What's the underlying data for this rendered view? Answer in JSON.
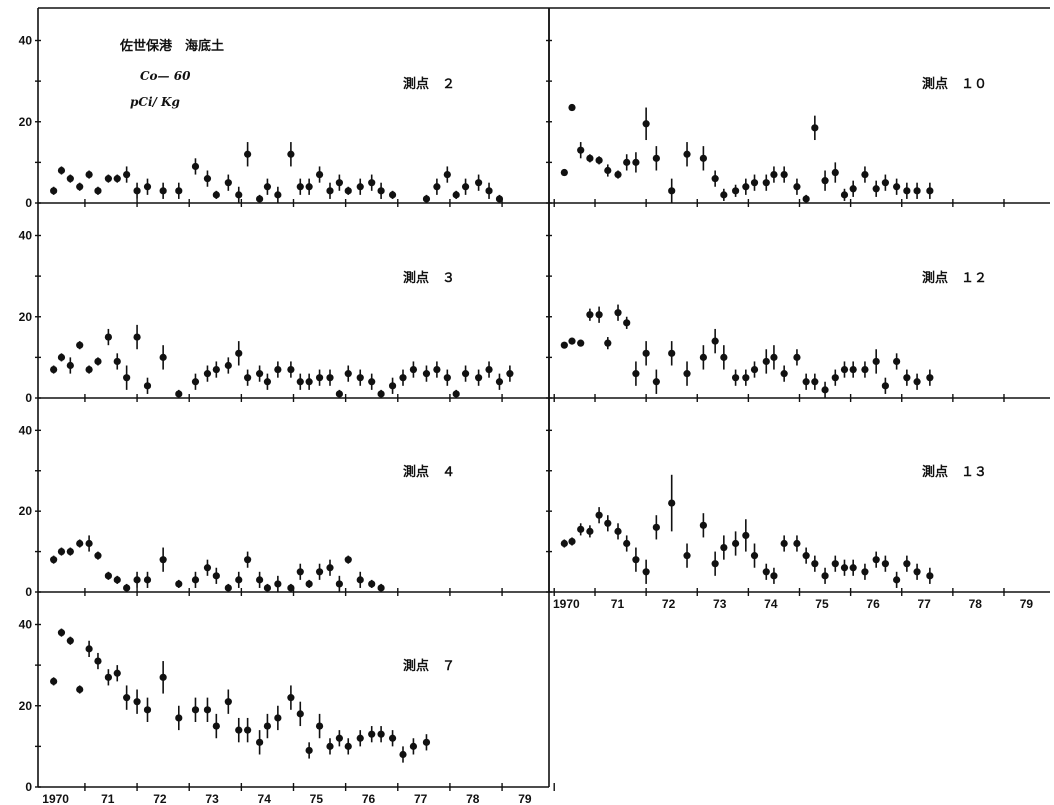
{
  "header": {
    "title": "佐世保港　海底土",
    "nuclide": "Co— 60",
    "unit": "pCi/ Kg"
  },
  "colors": {
    "ink": "#111111",
    "background": "#ffffff"
  },
  "chart_data": [
    {
      "type": "scatter",
      "station_label": "測点　２",
      "ylim": [
        0,
        48
      ],
      "yticks": [
        0,
        20,
        40
      ],
      "xlim": [
        1969.7,
        1979.5
      ],
      "xtick_labels": [
        "1970",
        "71",
        "72",
        "73",
        "74",
        "75",
        "76",
        "77",
        "78",
        "79"
      ],
      "x": [
        1970.0,
        1970.15,
        1970.32,
        1970.5,
        1970.68,
        1970.85,
        1971.05,
        1971.22,
        1971.4,
        1971.6,
        1971.8,
        1972.1,
        1972.4,
        1972.72,
        1972.95,
        1973.12,
        1973.35,
        1973.55,
        1973.72,
        1973.95,
        1974.1,
        1974.3,
        1974.55,
        1974.73,
        1974.9,
        1975.1,
        1975.3,
        1975.48,
        1975.65,
        1975.88,
        1976.1,
        1976.28,
        1976.5,
        1976.7,
        1976.9,
        1977.15,
        1977.35,
        1977.55,
        1977.72,
        1977.9,
        1978.15,
        1978.35,
        1978.55
      ],
      "y": [
        3,
        8,
        6,
        4,
        7,
        3,
        6,
        6,
        7,
        3,
        4,
        3,
        3,
        9,
        6,
        2,
        5,
        2,
        12,
        1,
        4,
        2,
        12,
        4,
        4,
        7,
        3,
        5,
        3,
        4,
        5,
        3,
        2,
        0,
        0,
        1,
        4,
        7,
        2,
        4,
        5,
        3,
        1
      ],
      "err": [
        1,
        1,
        1,
        1,
        1,
        1,
        1,
        1,
        2,
        2,
        2,
        2,
        2,
        2,
        2,
        1,
        2,
        2,
        3,
        1,
        2,
        2,
        3,
        2,
        2,
        2,
        2,
        2,
        1,
        2,
        2,
        2,
        1,
        0,
        0,
        1,
        2,
        2,
        1,
        2,
        2,
        2,
        1
      ]
    },
    {
      "type": "scatter",
      "station_label": "測点　３",
      "ylim": [
        0,
        48
      ],
      "yticks": [
        0,
        20,
        40
      ],
      "xlim": [
        1969.7,
        1979.5
      ],
      "xtick_labels": [
        "1970",
        "71",
        "72",
        "73",
        "74",
        "75",
        "76",
        "77",
        "78",
        "79"
      ],
      "x": [
        1970.0,
        1970.15,
        1970.32,
        1970.5,
        1970.68,
        1970.85,
        1971.05,
        1971.22,
        1971.4,
        1971.6,
        1971.8,
        1972.1,
        1972.4,
        1972.72,
        1972.95,
        1973.12,
        1973.35,
        1973.55,
        1973.72,
        1973.95,
        1974.1,
        1974.3,
        1974.55,
        1974.73,
        1974.9,
        1975.1,
        1975.3,
        1975.48,
        1975.65,
        1975.88,
        1976.1,
        1976.28,
        1976.5,
        1976.7,
        1976.9,
        1977.15,
        1977.35,
        1977.55,
        1977.72,
        1977.9,
        1978.15,
        1978.35,
        1978.55,
        1978.75
      ],
      "y": [
        7,
        10,
        8,
        13,
        7,
        9,
        15,
        9,
        5,
        15,
        3,
        10,
        1,
        4,
        6,
        7,
        8,
        11,
        5,
        6,
        4,
        7,
        7,
        4,
        4,
        5,
        5,
        1,
        6,
        5,
        4,
        1,
        3,
        5,
        7,
        6,
        7,
        5,
        1,
        6,
        5,
        7,
        4,
        6
      ],
      "err": [
        1,
        1,
        2,
        1,
        1,
        1,
        2,
        2,
        3,
        3,
        2,
        3,
        1,
        2,
        2,
        2,
        2,
        3,
        2,
        2,
        2,
        2,
        2,
        2,
        2,
        2,
        2,
        1,
        2,
        2,
        2,
        1,
        2,
        2,
        2,
        2,
        2,
        2,
        1,
        2,
        2,
        2,
        2,
        2
      ]
    },
    {
      "type": "scatter",
      "station_label": "測点　４",
      "ylim": [
        0,
        48
      ],
      "yticks": [
        0,
        20,
        40
      ],
      "xlim": [
        1969.7,
        1979.5
      ],
      "xtick_labels": [
        "1970",
        "71",
        "72",
        "73",
        "74",
        "75",
        "76",
        "77",
        "78",
        "79"
      ],
      "x": [
        1970.0,
        1970.15,
        1970.32,
        1970.5,
        1970.68,
        1970.85,
        1971.05,
        1971.22,
        1971.4,
        1971.6,
        1971.8,
        1972.1,
        1972.4,
        1972.72,
        1972.95,
        1973.12,
        1973.35,
        1973.55,
        1973.72,
        1973.95,
        1974.1,
        1974.3,
        1974.55,
        1974.73,
        1974.9,
        1975.1,
        1975.3,
        1975.48,
        1975.65,
        1975.88,
        1976.1,
        1976.28,
        1976.5,
        1976.7,
        1976.9,
        1977.15,
        1977.35,
        1977.55,
        1977.72,
        1977.9,
        1978.15,
        1978.35
      ],
      "y": [
        8,
        10,
        10,
        12,
        12,
        9,
        4,
        3,
        1,
        3,
        3,
        8,
        2,
        3,
        6,
        4,
        1,
        3,
        8,
        3,
        1,
        2,
        1,
        5,
        2,
        5,
        6,
        2,
        8,
        3,
        2,
        1,
        0,
        0,
        0,
        0,
        0,
        0,
        0,
        0,
        0,
        0
      ],
      "err": [
        1,
        1,
        1,
        1,
        2,
        1,
        1,
        1,
        1,
        2,
        2,
        3,
        1,
        2,
        2,
        2,
        1,
        2,
        2,
        2,
        1,
        2,
        1,
        2,
        1,
        2,
        2,
        2,
        1,
        2,
        1,
        1,
        0,
        0,
        0,
        0,
        0,
        0,
        0,
        0,
        0,
        0
      ]
    },
    {
      "type": "scatter",
      "station_label": "測点　７",
      "ylim": [
        0,
        48
      ],
      "yticks": [
        0,
        20,
        40
      ],
      "xlim": [
        1969.7,
        1979.5
      ],
      "xtick_labels": [
        "1970",
        "71",
        "72",
        "73",
        "74",
        "75",
        "76",
        "77",
        "78",
        "79"
      ],
      "x": [
        1970.0,
        1970.15,
        1970.32,
        1970.5,
        1970.68,
        1970.85,
        1971.05,
        1971.22,
        1971.4,
        1971.6,
        1971.8,
        1972.1,
        1972.4,
        1972.72,
        1972.95,
        1973.12,
        1973.35,
        1973.55,
        1973.72,
        1973.95,
        1974.1,
        1974.3,
        1974.55,
        1974.73,
        1974.9,
        1975.1,
        1975.3,
        1975.48,
        1975.65,
        1975.88,
        1976.1,
        1976.28,
        1976.5,
        1976.7,
        1976.9,
        1977.15,
        1977.35,
        1977.55,
        1977.72,
        1977.9,
        1978.15,
        1978.35,
        1978.55
      ],
      "y": [
        26,
        38,
        36,
        24,
        34,
        31,
        27,
        28,
        22,
        21,
        19,
        27,
        17,
        19,
        19,
        15,
        21,
        14,
        14,
        11,
        15,
        17,
        22,
        18,
        9,
        15,
        10,
        12,
        10,
        12,
        13,
        13,
        12,
        8,
        10,
        11,
        0,
        0,
        0,
        0,
        0,
        0,
        0
      ],
      "err": [
        1,
        1,
        1,
        1,
        2,
        2,
        2,
        2,
        3,
        3,
        3,
        4,
        3,
        3,
        3,
        3,
        3,
        3,
        3,
        3,
        3,
        3,
        3,
        3,
        2,
        3,
        2,
        2,
        2,
        2,
        2,
        2,
        2,
        2,
        2,
        2,
        0,
        0,
        0,
        0,
        0,
        0,
        0
      ]
    },
    {
      "type": "scatter",
      "station_label": "測点　１０",
      "ylim": [
        0,
        48
      ],
      "yticks": [
        0,
        20,
        40
      ],
      "xlim": [
        1969.7,
        1979.5
      ],
      "xtick_labels": [
        "1970",
        "71",
        "72",
        "73",
        "74",
        "75",
        "76",
        "77",
        "78",
        "79"
      ],
      "x": [
        1970.0,
        1970.15,
        1970.32,
        1970.5,
        1970.68,
        1970.85,
        1971.05,
        1971.22,
        1971.4,
        1971.6,
        1971.8,
        1972.1,
        1972.4,
        1972.72,
        1972.95,
        1973.12,
        1973.35,
        1973.55,
        1973.72,
        1973.95,
        1974.1,
        1974.3,
        1974.55,
        1974.73,
        1974.9,
        1975.1,
        1975.3,
        1975.48,
        1975.65,
        1975.88,
        1976.1,
        1976.28,
        1976.5,
        1976.7,
        1976.9,
        1977.15,
        1977.35,
        1977.55,
        1977.72,
        1977.9,
        1978.15,
        1978.35,
        1978.55
      ],
      "y": [
        7.5,
        23.5,
        13,
        11,
        10.5,
        8,
        7,
        10,
        10,
        19.5,
        11,
        3,
        12,
        11,
        6,
        2,
        3,
        4,
        5,
        5,
        7,
        7,
        4,
        1,
        18.5,
        5.5,
        7.5,
        2,
        3.5,
        7,
        3.5,
        5,
        4,
        3,
        3,
        3,
        0,
        0,
        0,
        0,
        0,
        0,
        0
      ],
      "err": [
        0.8,
        0.8,
        2,
        1,
        1,
        1.5,
        1,
        2,
        2.5,
        4,
        3,
        3,
        3,
        3,
        2,
        1.5,
        1.5,
        2,
        2,
        2,
        2,
        2,
        2,
        1,
        3,
        2.5,
        2.5,
        1.5,
        2,
        2,
        2,
        2,
        2,
        2,
        2,
        2,
        0,
        0,
        0,
        0,
        0,
        0,
        0
      ]
    },
    {
      "type": "scatter",
      "station_label": "測点　１２",
      "ylim": [
        0,
        48
      ],
      "yticks": [
        0,
        20,
        40
      ],
      "xlim": [
        1969.7,
        1979.5
      ],
      "xtick_labels": [
        "1970",
        "71",
        "72",
        "73",
        "74",
        "75",
        "76",
        "77",
        "78",
        "79"
      ],
      "x": [
        1970.0,
        1970.15,
        1970.32,
        1970.5,
        1970.68,
        1970.85,
        1971.05,
        1971.22,
        1971.4,
        1971.6,
        1971.8,
        1972.1,
        1972.4,
        1972.72,
        1972.95,
        1973.12,
        1973.35,
        1973.55,
        1973.72,
        1973.95,
        1974.1,
        1974.3,
        1974.55,
        1974.73,
        1974.9,
        1975.1,
        1975.3,
        1975.48,
        1975.65,
        1975.88,
        1976.1,
        1976.28,
        1976.5,
        1976.7,
        1976.9,
        1977.15,
        1977.35,
        1977.55,
        1977.72,
        1977.9,
        1978.15,
        1978.35,
        1978.55
      ],
      "y": [
        13,
        14,
        13.5,
        20.5,
        20.5,
        13.5,
        21,
        18.5,
        6,
        11,
        4,
        11,
        6,
        10,
        14,
        10,
        5,
        5,
        7,
        9,
        10,
        6,
        10,
        4,
        4,
        2,
        5,
        7,
        7,
        7,
        9,
        3,
        9,
        5,
        4,
        5,
        0,
        0,
        0,
        0,
        0,
        0,
        0
      ],
      "err": [
        0.8,
        0.8,
        0.8,
        1.5,
        2,
        1.5,
        2,
        1.5,
        3,
        3,
        3,
        3,
        3,
        3,
        3,
        3,
        2,
        2,
        2,
        3,
        3,
        2,
        2,
        2,
        2,
        2,
        2,
        2,
        2,
        2,
        3,
        2,
        2,
        2,
        2,
        2,
        0,
        0,
        0,
        0,
        0,
        0,
        0
      ]
    },
    {
      "type": "scatter",
      "station_label": "測点　１３",
      "ylim": [
        0,
        48
      ],
      "yticks": [
        0,
        20,
        40
      ],
      "xlim": [
        1969.7,
        1979.5
      ],
      "xtick_labels": [
        "1970",
        "71",
        "72",
        "73",
        "74",
        "75",
        "76",
        "77",
        "78",
        "79"
      ],
      "x": [
        1970.0,
        1970.15,
        1970.32,
        1970.5,
        1970.68,
        1970.85,
        1971.05,
        1971.22,
        1971.4,
        1971.6,
        1971.8,
        1972.1,
        1972.4,
        1972.72,
        1972.95,
        1973.12,
        1973.35,
        1973.55,
        1973.72,
        1973.95,
        1974.1,
        1974.3,
        1974.55,
        1974.73,
        1974.9,
        1975.1,
        1975.3,
        1975.48,
        1975.65,
        1975.88,
        1976.1,
        1976.28,
        1976.5,
        1976.7,
        1976.9,
        1977.15,
        1977.35,
        1977.55,
        1977.72,
        1977.9,
        1978.15,
        1978.35,
        1978.55
      ],
      "y": [
        12,
        12.5,
        15.5,
        15,
        19,
        17,
        15,
        12,
        8,
        5,
        16,
        22,
        9,
        16.5,
        7,
        11,
        12,
        14,
        9,
        5,
        4,
        12,
        12,
        9,
        7,
        4,
        7,
        6,
        6,
        5,
        8,
        7,
        3,
        7,
        5,
        4,
        0,
        0,
        0,
        0,
        0,
        0,
        0
      ],
      "err": [
        1,
        1,
        1.5,
        1.5,
        2,
        2,
        2,
        2,
        3,
        3,
        3,
        7,
        3,
        3,
        3,
        3,
        3,
        4,
        3,
        2,
        2,
        2,
        2,
        2,
        2,
        2,
        2,
        2,
        2,
        2,
        2,
        2,
        2,
        2,
        2,
        2,
        0,
        0,
        0,
        0,
        0,
        0,
        0
      ]
    }
  ]
}
